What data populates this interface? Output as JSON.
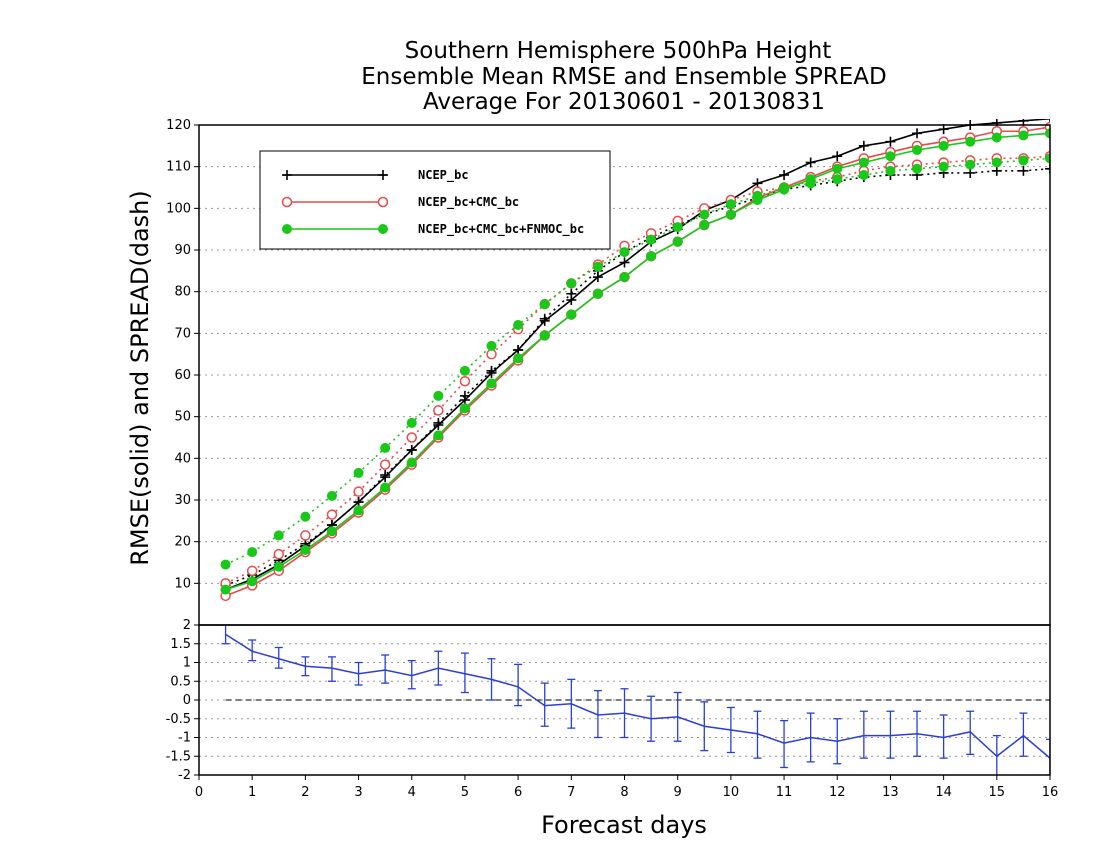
{
  "titles": [
    "Southern Hemisphere 500hPa Height",
    "Ensemble Mean RMSE and Ensemble SPREAD",
    "Average For 20130601 - 20130831"
  ],
  "chart_data": [
    {
      "type": "line",
      "ylabel": "RMSE(solid) and SPREAD(dash)",
      "xlim": [
        0,
        16
      ],
      "ylim": [
        0,
        120
      ],
      "yticks": [
        10,
        20,
        30,
        40,
        50,
        60,
        70,
        80,
        90,
        100,
        110,
        120
      ],
      "grid": true,
      "legend_position": "top-left",
      "x": [
        0.5,
        1,
        1.5,
        2,
        2.5,
        3,
        3.5,
        4,
        4.5,
        5,
        5.5,
        6,
        6.5,
        7,
        7.5,
        8,
        8.5,
        9,
        9.5,
        10,
        10.5,
        11,
        11.5,
        12,
        12.5,
        13,
        13.5,
        14,
        14.5,
        15,
        15.5,
        16
      ],
      "series": [
        {
          "name": "NCEP_bc",
          "metric": "RMSE",
          "style": "solid",
          "marker": "plus",
          "color": "#000000",
          "values": [
            8.5,
            11,
            14.5,
            19,
            24,
            29.5,
            35.5,
            42,
            48,
            54,
            60.5,
            66,
            73,
            78,
            83.5,
            87,
            92,
            95,
            99.5,
            102,
            106,
            108,
            111,
            112.5,
            115,
            116,
            118,
            119,
            120,
            120.5,
            121,
            121.5
          ]
        },
        {
          "name": "NCEP_bc",
          "metric": "SPREAD",
          "style": "dash",
          "marker": "plus",
          "color": "#000000",
          "values": [
            9.5,
            12,
            15.5,
            19.5,
            24,
            29.5,
            36,
            42,
            48.5,
            55,
            61,
            66,
            73.5,
            79.5,
            85,
            89.5,
            93,
            96,
            98.5,
            100.5,
            102.5,
            104.5,
            105.5,
            106.5,
            107.5,
            108,
            108,
            108.5,
            108.5,
            109,
            109,
            109.5
          ]
        },
        {
          "name": "NCEP_bc+CMC_bc",
          "metric": "RMSE",
          "style": "solid",
          "marker": "open-circle",
          "color": "#e84a4a",
          "values": [
            7,
            9.5,
            13,
            17.5,
            22,
            27,
            32.5,
            38.5,
            45,
            51.5,
            57.5,
            63.5,
            69.5,
            74.5,
            79.5,
            83.5,
            88.5,
            92,
            96,
            98.5,
            102.5,
            105,
            107.5,
            110,
            112,
            113.5,
            115,
            116,
            117,
            118.5,
            118.5,
            119.5
          ]
        },
        {
          "name": "NCEP_bc+CMC_bc",
          "metric": "SPREAD",
          "style": "dash",
          "marker": "open-circle",
          "color": "#e84a4a",
          "values": [
            10,
            13,
            17,
            21.5,
            26.5,
            32,
            38.5,
            45,
            51.5,
            58.5,
            65,
            71,
            77,
            82,
            86.5,
            91,
            94,
            97,
            100,
            102,
            104,
            105,
            106.5,
            107.5,
            109,
            110,
            110.5,
            111,
            111.5,
            112,
            112,
            112.5
          ]
        },
        {
          "name": "NCEP_bc+CMC_bc+FNMOC_bc",
          "metric": "RMSE",
          "style": "solid",
          "marker": "filled-circle",
          "color": "#19c819",
          "values": [
            8.5,
            10.5,
            14,
            18,
            22.5,
            27.5,
            33,
            39,
            45.5,
            52,
            58,
            64,
            69.5,
            74.5,
            79.5,
            83.5,
            88.5,
            92,
            96,
            98.5,
            102,
            104.5,
            107,
            109.5,
            111,
            112.5,
            114,
            115,
            116,
            117,
            117.5,
            118
          ]
        },
        {
          "name": "NCEP_bc+CMC_bc+FNMOC_bc",
          "metric": "SPREAD",
          "style": "dash",
          "marker": "filled-circle",
          "color": "#19c819",
          "values": [
            14.5,
            17.5,
            21.5,
            26,
            31,
            36.5,
            42.5,
            48.5,
            55,
            61,
            67,
            72,
            77,
            82,
            86,
            89.5,
            92.5,
            95.5,
            98.5,
            101,
            103,
            105,
            106,
            107,
            108,
            109,
            109.5,
            110,
            110.5,
            111,
            111.5,
            112
          ]
        }
      ]
    },
    {
      "type": "line",
      "xlabel": "Forecast days",
      "xlim": [
        0,
        16
      ],
      "xticks": [
        0,
        1,
        2,
        3,
        4,
        5,
        6,
        7,
        8,
        9,
        10,
        11,
        12,
        13,
        14,
        15,
        16
      ],
      "ylim": [
        -2,
        2
      ],
      "yticks": [
        -2,
        -1.5,
        -1,
        -0.5,
        0,
        0.5,
        1,
        1.5,
        2
      ],
      "ytick_labels": [
        "-2",
        "-1.5",
        "-1",
        "-0.5",
        "0",
        "0.5",
        "1",
        "1.5",
        "2"
      ],
      "grid": true,
      "reference_line": 0,
      "x": [
        0.5,
        1,
        1.5,
        2,
        2.5,
        3,
        3.5,
        4,
        4.5,
        5,
        5.5,
        6,
        6.5,
        7,
        7.5,
        8,
        8.5,
        9,
        9.5,
        10,
        10.5,
        11,
        11.5,
        12,
        12.5,
        13,
        13.5,
        14,
        14.5,
        15,
        15.5,
        16
      ],
      "series": [
        {
          "color": "#2a3fd6",
          "values": [
            1.75,
            1.3,
            1.1,
            0.9,
            0.85,
            0.7,
            0.8,
            0.65,
            0.85,
            0.7,
            0.55,
            0.35,
            -0.15,
            -0.1,
            -0.4,
            -0.35,
            -0.5,
            -0.45,
            -0.7,
            -0.8,
            -0.9,
            -1.15,
            -1.0,
            -1.1,
            -0.95,
            -0.95,
            -0.9,
            -1.0,
            -0.85,
            -1.5,
            -0.95,
            -1.55
          ],
          "err_low": [
            1.5,
            1.05,
            0.85,
            0.65,
            0.5,
            0.4,
            0.45,
            0.3,
            0.4,
            0.2,
            0.0,
            -0.15,
            -0.7,
            -0.75,
            -1.0,
            -1.0,
            -1.1,
            -1.1,
            -1.35,
            -1.4,
            -1.55,
            -1.8,
            -1.65,
            -1.7,
            -1.55,
            -1.55,
            -1.5,
            -1.55,
            -1.45,
            -2.1,
            -1.5,
            -2.0
          ],
          "err_high": [
            2.0,
            1.6,
            1.4,
            1.15,
            1.15,
            1.0,
            1.2,
            1.05,
            1.3,
            1.25,
            1.1,
            0.95,
            0.45,
            0.55,
            0.25,
            0.3,
            0.1,
            0.2,
            -0.05,
            -0.2,
            -0.3,
            -0.55,
            -0.35,
            -0.5,
            -0.3,
            -0.3,
            -0.3,
            -0.4,
            -0.3,
            -0.95,
            -0.35,
            -1.05
          ]
        }
      ]
    }
  ]
}
